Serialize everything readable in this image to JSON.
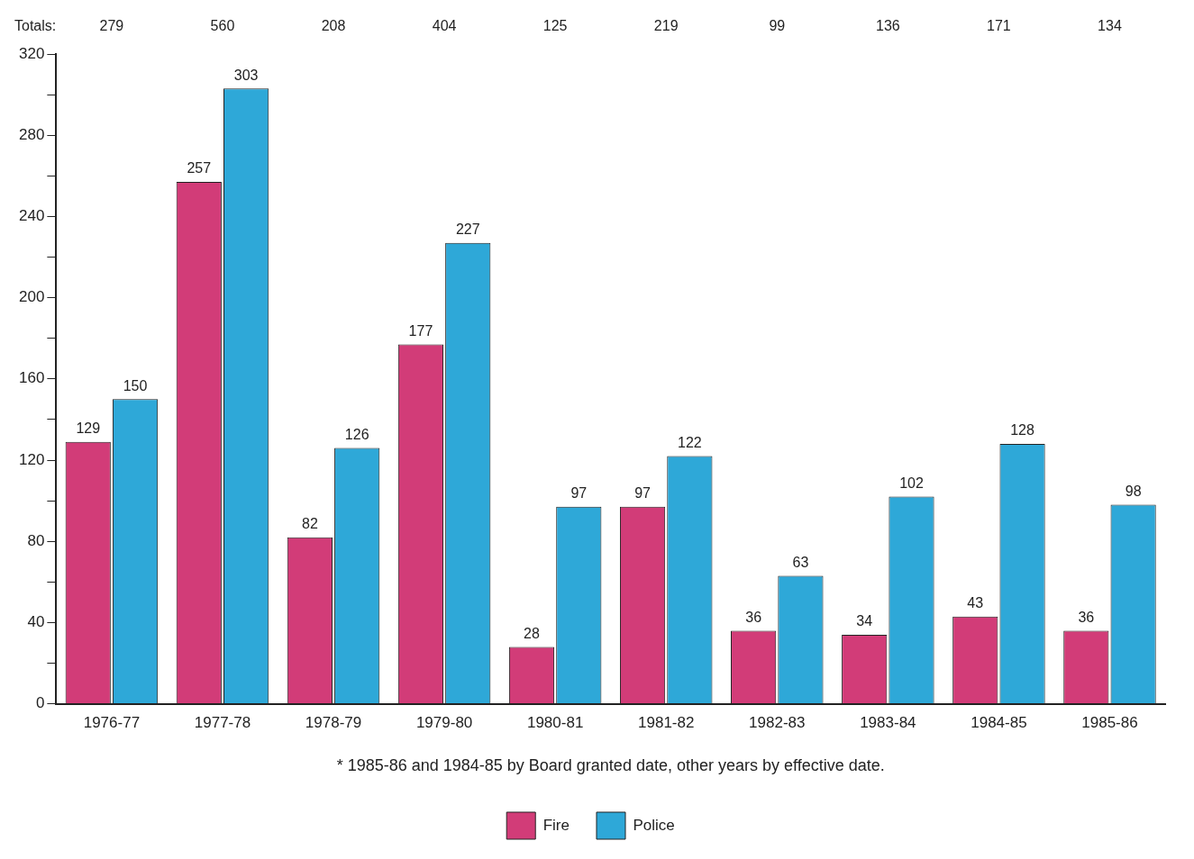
{
  "chart_data": {
    "type": "bar",
    "categories": [
      "1976-77",
      "1977-78",
      "1978-79",
      "1979-80",
      "1980-81",
      "1981-82",
      "1982-83",
      "1983-84",
      "1984-85",
      "1985-86"
    ],
    "series": [
      {
        "name": "Fire",
        "color": "#d23c78",
        "values": [
          129,
          257,
          82,
          177,
          28,
          97,
          36,
          34,
          43,
          36
        ]
      },
      {
        "name": "Police",
        "color": "#2ea8d8",
        "values": [
          150,
          303,
          126,
          227,
          97,
          122,
          63,
          102,
          128,
          98
        ]
      }
    ],
    "ylim": [
      0,
      320
    ],
    "yticks": [
      0,
      {
        "value": 20,
        "label": null
      },
      40,
      {
        "value": 60,
        "label": null
      },
      80,
      {
        "value": 100,
        "label": null
      },
      120,
      {
        "value": 140,
        "label": null
      },
      160,
      {
        "value": 180,
        "label": null
      },
      200,
      {
        "value": 220,
        "label": null
      },
      240,
      {
        "value": 260,
        "label": null
      },
      280,
      {
        "value": 300,
        "label": null
      },
      320
    ],
    "data_labels": true,
    "annotations": [
      "* 1985-86 and 1984-85 by Board granted date, other years by effective date.",
      "Totals:",
      "279",
      "560",
      "208",
      "404",
      "125",
      "219",
      "99",
      "136",
      "171",
      "134"
    ],
    "grid": false,
    "legend": "bottom"
  }
}
